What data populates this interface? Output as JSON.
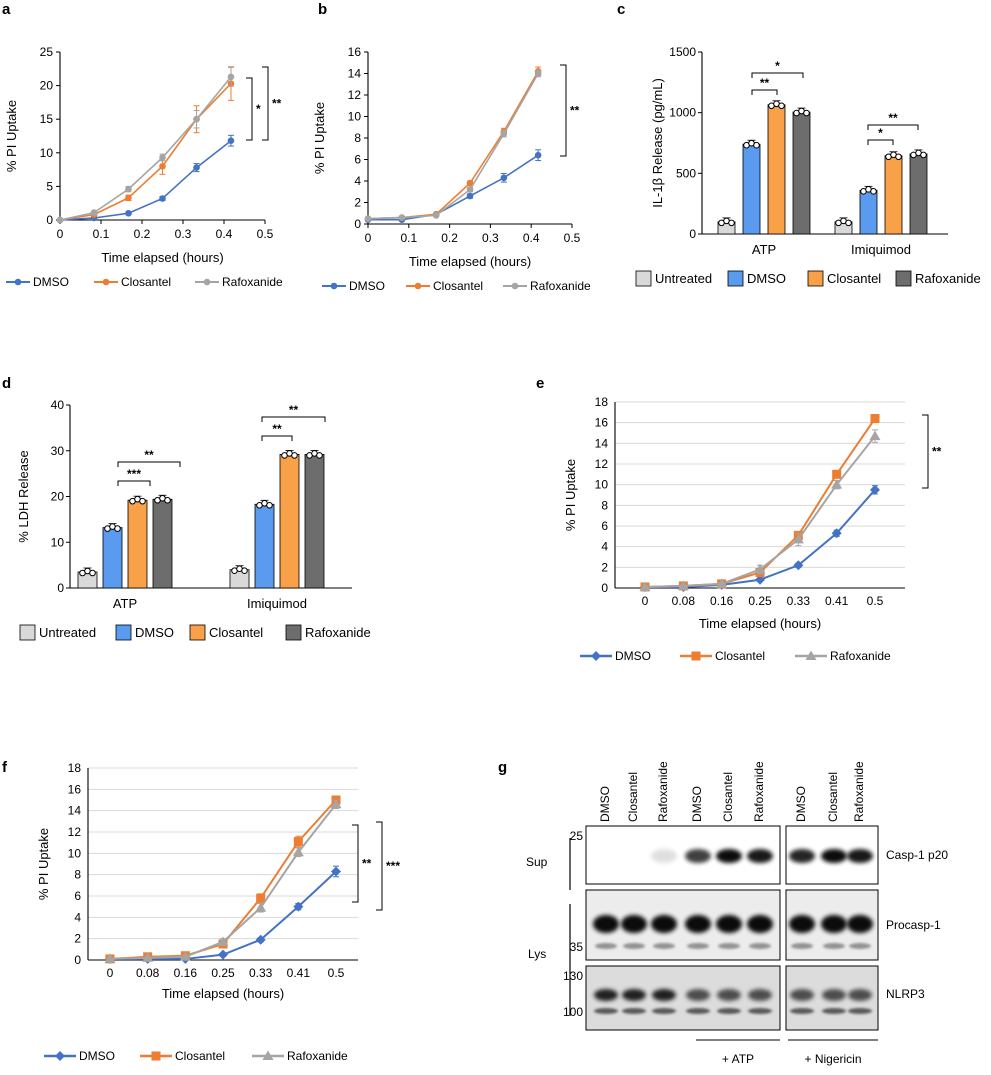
{
  "colors": {
    "dmso": "#4472c4",
    "closantel": "#ed7d31",
    "rafoxanide": "#a5a5a5",
    "bar_untreated": "#d9d9d9",
    "bar_dmso": "#5b9bef",
    "bar_closantel": "#f9a148",
    "bar_rafoxanide": "#6d6d6d"
  },
  "chart_data": [
    {
      "panel": "a",
      "type": "line",
      "xlabel": "Time elapsed (hours)",
      "ylabel": "% PI Uptake",
      "xlim": [
        0,
        0.5
      ],
      "ylim": [
        0,
        25
      ],
      "xticks": [
        "0",
        "0.1",
        "0.2",
        "0.3",
        "0.4",
        "0.5"
      ],
      "yticks": [
        "0",
        "5",
        "10",
        "15",
        "20",
        "25"
      ],
      "x": [
        0,
        0.083,
        0.167,
        0.25,
        0.333,
        0.417
      ],
      "series": [
        {
          "name": "DMSO",
          "values": [
            0,
            0.3,
            1.0,
            3.2,
            7.8,
            11.8
          ],
          "err": [
            0.2,
            0.2,
            0.2,
            0.3,
            0.6,
            0.8
          ]
        },
        {
          "name": "Closantel",
          "values": [
            0,
            0.8,
            3.3,
            8.0,
            15.0,
            20.3
          ],
          "err": [
            0.2,
            0.2,
            0.4,
            1.2,
            2.0,
            2.5
          ]
        },
        {
          "name": "Rafoxanide",
          "values": [
            0,
            1.1,
            4.6,
            9.3,
            15.0,
            21.3
          ],
          "err": [
            0.2,
            0.2,
            0.4,
            0.5,
            1.3,
            1.4
          ]
        }
      ],
      "significance": [
        "*",
        "**"
      ]
    },
    {
      "panel": "b",
      "type": "line",
      "xlabel": "Time elapsed (hours)",
      "ylabel": "% PI Uptake",
      "xlim": [
        0,
        0.5
      ],
      "ylim": [
        0,
        16
      ],
      "xticks": [
        "0",
        "0.1",
        "0.2",
        "0.3",
        "0.4",
        "0.5"
      ],
      "yticks": [
        "0",
        "2",
        "4",
        "6",
        "8",
        "10",
        "12",
        "14",
        "16"
      ],
      "x": [
        0,
        0.083,
        0.167,
        0.25,
        0.333,
        0.417
      ],
      "series": [
        {
          "name": "DMSO",
          "values": [
            0.4,
            0.4,
            0.9,
            2.6,
            4.3,
            6.4
          ],
          "err": [
            0.1,
            0.1,
            0.1,
            0.2,
            0.4,
            0.5
          ]
        },
        {
          "name": "Closantel",
          "values": [
            0.5,
            0.6,
            0.9,
            3.8,
            8.6,
            14.2
          ],
          "err": [
            0.1,
            0.1,
            0.1,
            0.2,
            0.3,
            0.4
          ]
        },
        {
          "name": "Rafoxanide",
          "values": [
            0.5,
            0.6,
            0.8,
            3.2,
            8.4,
            14.0
          ],
          "err": [
            0.1,
            0.1,
            0.1,
            0.2,
            0.3,
            0.3
          ]
        }
      ],
      "significance": [
        "**"
      ]
    },
    {
      "panel": "c",
      "type": "bar",
      "ylabel": "IL-1β Release (pg/mL)",
      "ylim": [
        0,
        1500
      ],
      "yticks": [
        "0",
        "500",
        "1000",
        "1500"
      ],
      "categories": [
        "ATP",
        "Imiquimod"
      ],
      "series": [
        {
          "name": "Untreated",
          "values": [
            100,
            100
          ]
        },
        {
          "name": "DMSO",
          "values": [
            740,
            360
          ]
        },
        {
          "name": "Closantel",
          "values": [
            1065,
            645
          ]
        },
        {
          "name": "Rafoxanide",
          "values": [
            1005,
            660
          ]
        }
      ],
      "significance": [
        "*",
        "**",
        "**",
        "*"
      ]
    },
    {
      "panel": "d",
      "type": "bar",
      "ylabel": "% LDH Release",
      "ylim": [
        0,
        40
      ],
      "yticks": [
        "0",
        "10",
        "20",
        "30",
        "40"
      ],
      "categories": [
        "ATP",
        "Imiquimod"
      ],
      "series": [
        {
          "name": "Untreated",
          "values": [
            3.5,
            4.0
          ]
        },
        {
          "name": "DMSO",
          "values": [
            13.2,
            18.3
          ]
        },
        {
          "name": "Closantel",
          "values": [
            19.2,
            29.2
          ]
        },
        {
          "name": "Rafoxanide",
          "values": [
            19.4,
            29.2
          ]
        }
      ],
      "significance": [
        "**",
        "***",
        "**",
        "**"
      ]
    },
    {
      "panel": "e",
      "type": "line",
      "xlabel": "Time elapsed (hours)",
      "ylabel": "% PI Uptake",
      "ylim": [
        0,
        18
      ],
      "categories": [
        "0",
        "0.08",
        "0.16",
        "0.25",
        "0.33",
        "0.41",
        "0.5"
      ],
      "yticks": [
        "0",
        "2",
        "4",
        "6",
        "8",
        "10",
        "12",
        "14",
        "16",
        "18"
      ],
      "series": [
        {
          "name": "DMSO",
          "values": [
            0.1,
            0.1,
            0.3,
            0.8,
            2.2,
            5.3,
            9.5
          ],
          "err": [
            0.1,
            0.1,
            0.1,
            0.1,
            0.2,
            0.3,
            0.4
          ]
        },
        {
          "name": "Closantel",
          "values": [
            0.1,
            0.2,
            0.4,
            1.5,
            5.1,
            11.0,
            16.4
          ],
          "err": [
            0.1,
            0.1,
            0.1,
            0.2,
            0.3,
            0.3,
            0.3
          ]
        },
        {
          "name": "Rafoxanide",
          "values": [
            0.1,
            0.2,
            0.4,
            1.8,
            4.7,
            10.0,
            14.7
          ],
          "err": [
            0.1,
            0.1,
            0.1,
            0.4,
            0.6,
            0.4,
            0.6
          ]
        }
      ],
      "significance": [
        "**"
      ]
    },
    {
      "panel": "f",
      "type": "line",
      "xlabel": "Time elapsed (hours)",
      "ylabel": "% PI Uptake",
      "ylim": [
        0,
        18
      ],
      "categories": [
        "0",
        "0.08",
        "0.16",
        "0.25",
        "0.33",
        "0.41",
        "0.5"
      ],
      "yticks": [
        "0",
        "2",
        "4",
        "6",
        "8",
        "10",
        "12",
        "14",
        "16",
        "18"
      ],
      "series": [
        {
          "name": "DMSO",
          "values": [
            0.1,
            0.1,
            0.1,
            0.5,
            1.9,
            5.0,
            8.3
          ],
          "err": [
            0.1,
            0.1,
            0.1,
            0.1,
            0.2,
            0.3,
            0.5
          ]
        },
        {
          "name": "Closantel",
          "values": [
            0.1,
            0.3,
            0.4,
            1.5,
            5.8,
            11.1,
            15.0
          ],
          "err": [
            0.1,
            0.1,
            0.1,
            0.2,
            0.4,
            0.5,
            0.3
          ]
        },
        {
          "name": "Rafoxanide",
          "values": [
            0.1,
            0.2,
            0.3,
            1.7,
            4.9,
            10.1,
            14.6
          ],
          "err": [
            0.1,
            0.1,
            0.1,
            0.3,
            0.4,
            0.4,
            0.4
          ]
        }
      ],
      "significance": [
        "**",
        "***"
      ]
    }
  ],
  "panel_letters": [
    "a",
    "b",
    "c",
    "d",
    "e",
    "f",
    "g"
  ],
  "blot": {
    "lanes": [
      "DMSO",
      "Closantel",
      "Rafoxanide",
      "DMSO",
      "Closantel",
      "Rafoxanide",
      "DMSO",
      "Closantel",
      "Rafoxanide"
    ],
    "sup_label": "Sup",
    "lys_label": "Lys",
    "mw_markers": [
      "25",
      "35",
      "130",
      "100"
    ],
    "bands": [
      "Casp-1 p20",
      "Procasp-1",
      "NLRP3"
    ],
    "treatments": [
      "+ ATP",
      "+ Nigericin"
    ]
  }
}
